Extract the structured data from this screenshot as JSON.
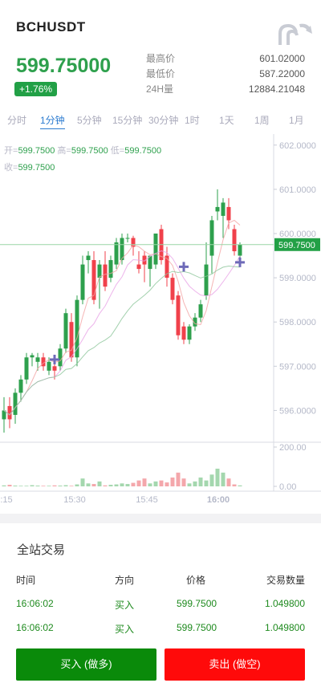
{
  "header": {
    "symbol": "BCHUSDT",
    "price": "599.75000",
    "change": "+1.76%",
    "stats": [
      {
        "label": "最高价",
        "value": "601.02000"
      },
      {
        "label": "最低价",
        "value": "587.22000"
      },
      {
        "label": "24H量",
        "value": "12884.21048"
      }
    ]
  },
  "tabs": [
    "分时",
    "1分钟",
    "5分钟",
    "15分钟",
    "30分钟",
    "1时",
    "1天",
    "1周",
    "1月"
  ],
  "active_tab": "1分钟",
  "ohlc": {
    "open_label": "开=",
    "open": "599.7500",
    "high_label": "高=",
    "high": "599.7500",
    "low_label": "低=",
    "low": "599.7500",
    "close_label": "收=",
    "close": "599.7500"
  },
  "chart_data": {
    "type": "candlestick",
    "price_axis": {
      "ticks": [
        "602.0000",
        "601.0000",
        "600.0000",
        "599.0000",
        "598.0000",
        "597.0000",
        "596.0000"
      ],
      "range": [
        595.3,
        602.25
      ]
    },
    "last_price_label": "599.7500",
    "volume_axis": {
      "ticks": [
        "200.00",
        "0.00"
      ],
      "range": [
        0,
        200
      ]
    },
    "time_labels": [
      ":15",
      "15:30",
      "15:45",
      "16:00"
    ],
    "candles": [
      {
        "o": 595.8,
        "h": 596.3,
        "l": 595.5,
        "c": 596.0
      },
      {
        "o": 596.1,
        "h": 596.3,
        "l": 595.6,
        "c": 595.8
      },
      {
        "o": 595.9,
        "h": 596.5,
        "l": 595.7,
        "c": 596.4
      },
      {
        "o": 596.4,
        "h": 596.8,
        "l": 596.2,
        "c": 596.7
      },
      {
        "o": 596.7,
        "h": 597.3,
        "l": 596.6,
        "c": 597.2
      },
      {
        "o": 597.2,
        "h": 597.3,
        "l": 597.0,
        "c": 597.25
      },
      {
        "o": 597.1,
        "h": 597.3,
        "l": 596.9,
        "c": 597.2
      },
      {
        "o": 597.2,
        "h": 597.3,
        "l": 596.9,
        "c": 597.0
      },
      {
        "o": 596.9,
        "h": 597.2,
        "l": 596.8,
        "c": 597.1
      },
      {
        "o": 597.0,
        "h": 597.2,
        "l": 596.7,
        "c": 596.9
      },
      {
        "o": 597.0,
        "h": 597.5,
        "l": 596.9,
        "c": 597.4
      },
      {
        "o": 597.4,
        "h": 598.3,
        "l": 597.3,
        "c": 598.2
      },
      {
        "o": 598.0,
        "h": 598.2,
        "l": 597.1,
        "c": 597.2
      },
      {
        "o": 597.2,
        "h": 598.6,
        "l": 597.0,
        "c": 598.5
      },
      {
        "o": 598.5,
        "h": 599.5,
        "l": 598.4,
        "c": 599.3
      },
      {
        "o": 599.4,
        "h": 599.6,
        "l": 599.1,
        "c": 599.5
      },
      {
        "o": 599.4,
        "h": 599.6,
        "l": 598.4,
        "c": 598.5
      },
      {
        "o": 599.0,
        "h": 599.4,
        "l": 598.3,
        "c": 599.3
      },
      {
        "o": 599.3,
        "h": 599.6,
        "l": 598.7,
        "c": 598.8
      },
      {
        "o": 599.0,
        "h": 599.5,
        "l": 598.9,
        "c": 599.4
      },
      {
        "o": 599.3,
        "h": 599.9,
        "l": 599.2,
        "c": 599.8
      },
      {
        "o": 599.4,
        "h": 600.0,
        "l": 599.3,
        "c": 599.9
      },
      {
        "o": 599.9,
        "h": 600.0,
        "l": 599.8,
        "c": 599.9
      },
      {
        "o": 599.9,
        "h": 599.95,
        "l": 599.5,
        "c": 599.7
      },
      {
        "o": 599.3,
        "h": 599.6,
        "l": 599.1,
        "c": 599.2
      },
      {
        "o": 599.5,
        "h": 599.6,
        "l": 598.9,
        "c": 599.3
      },
      {
        "o": 599.2,
        "h": 599.5,
        "l": 598.8,
        "c": 599.5
      },
      {
        "o": 599.3,
        "h": 600.0,
        "l": 599.2,
        "c": 600.0
      },
      {
        "o": 600.1,
        "h": 600.2,
        "l": 599.3,
        "c": 599.4
      },
      {
        "o": 599.5,
        "h": 599.7,
        "l": 598.8,
        "c": 599.0
      },
      {
        "o": 599.0,
        "h": 599.1,
        "l": 598.4,
        "c": 598.5
      },
      {
        "o": 598.6,
        "h": 598.7,
        "l": 597.6,
        "c": 597.7
      },
      {
        "o": 597.9,
        "h": 598.0,
        "l": 597.5,
        "c": 597.6
      },
      {
        "o": 597.6,
        "h": 597.95,
        "l": 597.5,
        "c": 597.9
      },
      {
        "o": 597.9,
        "h": 598.2,
        "l": 597.8,
        "c": 598.1
      },
      {
        "o": 598.1,
        "h": 598.5,
        "l": 598.0,
        "c": 598.4
      },
      {
        "o": 598.6,
        "h": 599.8,
        "l": 598.5,
        "c": 599.3
      },
      {
        "o": 599.5,
        "h": 600.4,
        "l": 599.1,
        "c": 600.3
      },
      {
        "o": 600.5,
        "h": 601.0,
        "l": 600.3,
        "c": 600.6
      },
      {
        "o": 600.4,
        "h": 600.8,
        "l": 599.9,
        "c": 600.7
      },
      {
        "o": 600.6,
        "h": 600.8,
        "l": 600.1,
        "c": 600.3
      },
      {
        "o": 600.1,
        "h": 600.2,
        "l": 599.5,
        "c": 599.6
      },
      {
        "o": 599.5,
        "h": 599.8,
        "l": 599.4,
        "c": 599.75
      }
    ],
    "volumes": [
      5,
      8,
      4,
      3,
      3,
      6,
      4,
      3,
      3,
      5,
      4,
      6,
      3,
      10,
      40,
      15,
      12,
      25,
      5,
      8,
      10,
      15,
      12,
      18,
      30,
      40,
      15,
      25,
      30,
      20,
      45,
      70,
      40,
      15,
      25,
      45,
      30,
      60,
      90,
      70,
      40,
      10,
      5
    ]
  },
  "recent_trades": {
    "title": "全站交易",
    "headers": {
      "time": "时间",
      "direction": "方向",
      "price": "价格",
      "amount": "交易数量"
    },
    "rows": [
      {
        "time": "16:06:02",
        "direction": "买入",
        "price": "599.7500",
        "amount": "1.049800"
      },
      {
        "time": "16:06:02",
        "direction": "买入",
        "price": "599.7500",
        "amount": "1.049800"
      }
    ]
  },
  "buttons": {
    "buy": "买入 (做多)",
    "sell": "卖出 (做空)"
  },
  "colors": {
    "up": "#2ea04d",
    "down": "#f0414b",
    "buy_button": "#0a8a0a",
    "sell_button": "#ff0a0a",
    "tab_active": "#2b7bd0"
  }
}
